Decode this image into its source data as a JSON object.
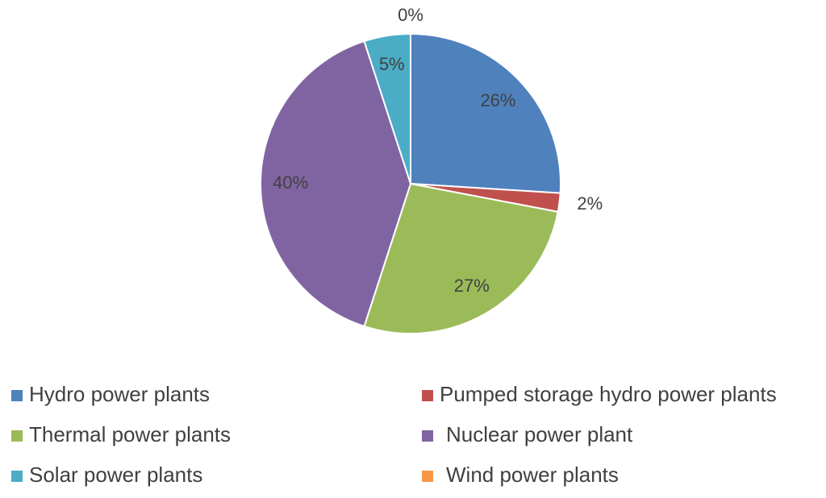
{
  "chart_data": {
    "type": "pie",
    "categories": [
      "Hydro power plants",
      "Pumped storage hydro power plants",
      "Thermal power plants",
      "Nuclear power plant",
      "Solar power plants",
      "Wind power plants"
    ],
    "values": [
      26,
      2,
      27,
      40,
      5,
      0
    ],
    "value_labels": [
      "26%",
      "2%",
      "27%",
      "40%",
      "5%",
      "0%"
    ],
    "colors": [
      "#4f81bd",
      "#c0504d",
      "#9bbb59",
      "#8064a2",
      "#4bacc6",
      "#f79646"
    ]
  }
}
